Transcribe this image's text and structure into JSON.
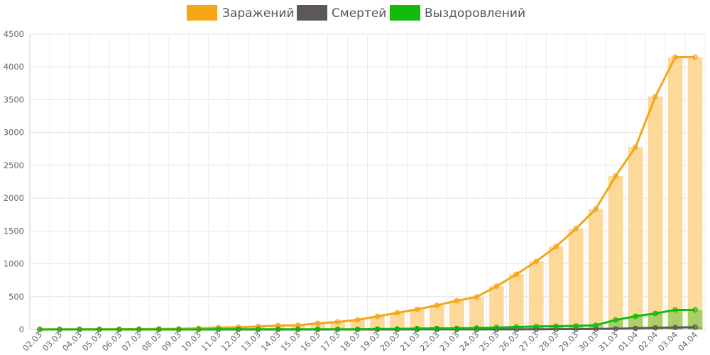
{
  "chart_data": {
    "type": "bar",
    "title": "",
    "xlabel": "",
    "ylabel": "",
    "ylim": [
      0,
      4500
    ],
    "yticks": [
      0,
      500,
      1000,
      1500,
      2000,
      2500,
      3000,
      3500,
      4000,
      4500
    ],
    "grid": true,
    "legend_position": "top-center",
    "categories": [
      "02.03",
      "03.03",
      "04.03",
      "05.03",
      "06.03",
      "07.03",
      "08.03",
      "09.03",
      "10.03",
      "11.03",
      "12.03",
      "13.03",
      "14.03",
      "15.03",
      "16.03",
      "17.03",
      "18.03",
      "19.03",
      "20.03",
      "21.03",
      "22.03",
      "23.03",
      "24.03",
      "25.03",
      "26.03",
      "27.03",
      "28.03",
      "29.03",
      "30.03",
      "31.03",
      "01.04",
      "02.04",
      "03.04",
      "04.04"
    ],
    "series": [
      {
        "name": "Заражений",
        "color": "#f5a516",
        "bar_color": "#fdd999",
        "render": "bar+line",
        "values": [
          3,
          3,
          3,
          4,
          4,
          7,
          10,
          10,
          17,
          28,
          34,
          45,
          59,
          63,
          93,
          114,
          147,
          199,
          253,
          306,
          367,
          438,
          495,
          658,
          840,
          1036,
          1264,
          1534,
          1836,
          2337,
          2777,
          3548,
          4149,
          4149
        ]
      },
      {
        "name": "Смертей",
        "color": "#5e5757",
        "render": "bar+line",
        "values": [
          0,
          0,
          0,
          0,
          0,
          0,
          0,
          0,
          0,
          0,
          0,
          0,
          0,
          0,
          0,
          0,
          0,
          0,
          0,
          1,
          1,
          1,
          1,
          1,
          2,
          3,
          4,
          6,
          8,
          11,
          17,
          24,
          30,
          34
        ]
      },
      {
        "name": "Выздоровлений",
        "color": "#14bb0e",
        "render": "bar+line",
        "values": [
          0,
          0,
          0,
          0,
          0,
          0,
          0,
          0,
          0,
          3,
          3,
          3,
          3,
          3,
          3,
          3,
          3,
          8,
          8,
          14,
          16,
          16,
          22,
          29,
          38,
          45,
          49,
          54,
          64,
          144,
          201,
          244,
          298,
          298
        ]
      }
    ]
  }
}
